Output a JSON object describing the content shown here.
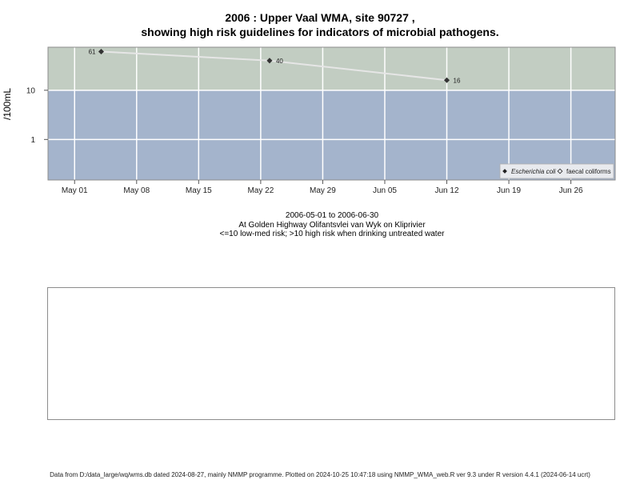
{
  "header": {
    "title_line1": "2006 : Upper Vaal WMA, site 90727 ,",
    "title_line2": "showing high risk guidelines for indicators of microbial pathogens."
  },
  "chart_data": {
    "type": "line",
    "ylabel": "/100mL",
    "yscale": "log",
    "y_ticks": [
      {
        "value": 1,
        "label": "1"
      },
      {
        "value": 10,
        "label": "10"
      }
    ],
    "ylim": [
      0.15,
      75
    ],
    "xlim": [
      "2006-04-28",
      "2006-07-01"
    ],
    "x_ticks": [
      {
        "date": "2006-05-01",
        "label": "May 01"
      },
      {
        "date": "2006-05-08",
        "label": "May 08"
      },
      {
        "date": "2006-05-15",
        "label": "May 15"
      },
      {
        "date": "2006-05-22",
        "label": "May 22"
      },
      {
        "date": "2006-05-29",
        "label": "May 29"
      },
      {
        "date": "2006-06-05",
        "label": "Jun 05"
      },
      {
        "date": "2006-06-12",
        "label": "Jun 12"
      },
      {
        "date": "2006-06-19",
        "label": "Jun 19"
      },
      {
        "date": "2006-06-26",
        "label": "Jun 26"
      }
    ],
    "threshold": 10,
    "colors": {
      "high_risk_band": "#c2cdc2",
      "low_risk_band": "#a4b4cc",
      "grid": "#ffffff",
      "trend_line": "#e6e6e6",
      "marker": "#333333"
    },
    "series": [
      {
        "name": "Escherichia coli",
        "points": [
          {
            "date": "2006-05-04",
            "value": 61,
            "label": "61"
          },
          {
            "date": "2006-05-23",
            "value": 40,
            "label": "40"
          },
          {
            "date": "2006-06-12",
            "value": 16,
            "label": "16"
          }
        ]
      }
    ],
    "legend": {
      "position": "bottom-right",
      "entries": [
        {
          "label": "Escherichia coli",
          "symbol": "filled-diamond"
        },
        {
          "label": "faecal coliforms",
          "symbol": "open-diamond"
        }
      ]
    },
    "grid": true
  },
  "subtitle": {
    "line1": "2006-05-01 to 2006-06-30",
    "line2": "At Golden Highway Olifantsvlei van Wyk on Kliprivier",
    "line3": "<=10 low-med risk; >10 high risk when drinking untreated water"
  },
  "footer": {
    "text": "Data from D:/data_large/wq/wms.db dated 2024-08-27, mainly NMMP programme. Plotted on 2024-10-25 10:47:18 using NMMP_WMA_web.R ver 9.3 under R version 4.4.1 (2024-06-14 ucrt)"
  }
}
